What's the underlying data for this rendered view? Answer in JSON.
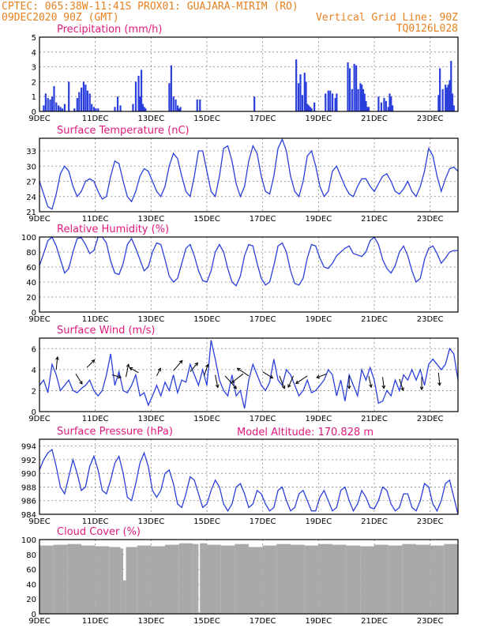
{
  "header": {
    "left1": "CPTEC:   065:38W-11:41S   PROX01: GUAJARA-MIRIM (RO)",
    "left2": "09DEC2020 90Z (GMT)",
    "right1": "Vertical Grid Line: 90Z",
    "right2": "TQ0126L028"
  },
  "colors": {
    "header": "#e8801f",
    "title": "#e0197d",
    "line": "#2b3fdc",
    "cloud": "#a9a9a9"
  },
  "chart_data": [
    {
      "type": "bar",
      "title": "Precipitation  (mm/h)",
      "ylim": [
        0,
        5
      ],
      "yticks": [
        "0",
        "1",
        "2",
        "3",
        "4",
        "5"
      ],
      "xticks": [
        "9DEC",
        "11DEC",
        "13DEC",
        "15DEC",
        "17DEC",
        "19DEC",
        "21DEC",
        "23DEC"
      ],
      "x_day": [
        0.15,
        0.22,
        0.3,
        0.38,
        0.45,
        0.52,
        0.6,
        0.68,
        0.75,
        0.82,
        0.9,
        1.05,
        1.25,
        1.35,
        1.42,
        1.5,
        1.58,
        1.65,
        1.72,
        1.8,
        1.87,
        1.95,
        2.02,
        2.1,
        2.7,
        2.8,
        2.9,
        3.35,
        3.45,
        3.55,
        3.6,
        3.65,
        3.7,
        3.75,
        3.8,
        4.65,
        4.72,
        4.8,
        4.88,
        4.95,
        5.0,
        5.05,
        5.65,
        5.75,
        7.7,
        9.2,
        9.28,
        9.35,
        9.42,
        9.5,
        9.55,
        9.6,
        9.65,
        9.7,
        9.75,
        9.85,
        10.25,
        10.35,
        10.42,
        10.5,
        10.6,
        10.65,
        11.05,
        11.12,
        11.2,
        11.28,
        11.35,
        11.42,
        11.5,
        11.55,
        11.6,
        11.65,
        11.7,
        11.75,
        11.8,
        12.15,
        12.25,
        12.35,
        12.42,
        12.5,
        12.55,
        12.6,
        12.65,
        14.3,
        14.35,
        14.45,
        14.55,
        14.6,
        14.65,
        14.7,
        14.75,
        14.8,
        14.85
      ],
      "values": [
        0.4,
        1.2,
        0.9,
        0.8,
        1.0,
        1.7,
        0.6,
        0.4,
        0.3,
        0.2,
        0.5,
        2.0,
        0.2,
        0.9,
        1.3,
        1.6,
        2.0,
        1.8,
        1.4,
        1.2,
        0.5,
        0.3,
        0.2,
        0.2,
        0.3,
        1.0,
        0.4,
        0.5,
        2.0,
        2.4,
        1.0,
        2.8,
        0.5,
        0.3,
        0.2,
        1.9,
        3.1,
        1.0,
        0.8,
        0.4,
        0.2,
        0.3,
        0.8,
        0.8,
        1.0,
        3.5,
        1.9,
        2.5,
        1.1,
        2.6,
        2.0,
        0.5,
        0.4,
        0.3,
        0.2,
        0.6,
        1.2,
        1.4,
        1.4,
        1.2,
        0.9,
        1.2,
        3.3,
        2.9,
        1.5,
        3.2,
        3.1,
        1.5,
        1.9,
        1.8,
        1.5,
        1.2,
        0.7,
        0.3,
        0.3,
        1.0,
        0.6,
        0.9,
        0.7,
        0.3,
        1.2,
        1.0,
        0.4,
        1.1,
        2.9,
        1.5,
        1.8,
        1.6,
        1.8,
        2.1,
        3.4,
        1.2,
        0.4
      ]
    },
    {
      "type": "line",
      "title": "Surface Temperature  (nC)",
      "ylim": [
        21,
        35.5
      ],
      "yticks": [
        "21",
        "24",
        "27",
        "30",
        "33"
      ],
      "xticks": [
        "9DEC",
        "11DEC",
        "13DEC",
        "15DEC",
        "17DEC",
        "19DEC",
        "21DEC",
        "23DEC"
      ],
      "x_day": [
        0,
        0.15,
        0.3,
        0.45,
        0.6,
        0.75,
        0.9,
        1.05,
        1.2,
        1.35,
        1.5,
        1.65,
        1.8,
        1.95,
        2.1,
        2.25,
        2.4,
        2.55,
        2.7,
        2.85,
        3.0,
        3.15,
        3.3,
        3.45,
        3.6,
        3.75,
        3.9,
        4.05,
        4.2,
        4.35,
        4.5,
        4.65,
        4.8,
        4.95,
        5.1,
        5.25,
        5.4,
        5.55,
        5.7,
        5.85,
        6.0,
        6.15,
        6.3,
        6.45,
        6.6,
        6.75,
        6.9,
        7.05,
        7.2,
        7.35,
        7.5,
        7.65,
        7.8,
        7.95,
        8.1,
        8.25,
        8.4,
        8.55,
        8.7,
        8.85,
        9.0,
        9.15,
        9.3,
        9.45,
        9.6,
        9.75,
        9.9,
        10.05,
        10.2,
        10.35,
        10.5,
        10.65,
        10.8,
        10.95,
        11.1,
        11.25,
        11.4,
        11.55,
        11.7,
        11.85,
        12.0,
        12.15,
        12.3,
        12.45,
        12.6,
        12.75,
        12.9,
        13.05,
        13.2,
        13.35,
        13.5,
        13.65,
        13.8,
        13.95,
        14.1,
        14.25,
        14.4,
        14.55,
        14.7,
        14.85,
        15.0
      ],
      "values": [
        27.0,
        24.5,
        22.0,
        21.5,
        24.5,
        28.5,
        30.0,
        29.0,
        26.0,
        24.0,
        25.0,
        27.0,
        27.5,
        27.0,
        25.0,
        23.5,
        24.0,
        28.0,
        31.0,
        30.5,
        27.0,
        24.0,
        23.0,
        25.0,
        28.0,
        29.5,
        29.0,
        27.0,
        25.0,
        24.0,
        26.0,
        30.0,
        32.5,
        31.5,
        28.0,
        25.0,
        24.0,
        28.0,
        33.0,
        33.0,
        29.0,
        25.0,
        24.0,
        28.0,
        33.5,
        34.0,
        31.0,
        26.5,
        24.0,
        26.0,
        31.0,
        34.0,
        32.5,
        28.0,
        25.0,
        24.5,
        28.0,
        33.5,
        35.3,
        33.0,
        28.0,
        25.0,
        24.0,
        27.0,
        32.0,
        33.0,
        30.0,
        26.0,
        24.0,
        25.0,
        29.0,
        30.0,
        28.0,
        26.0,
        24.5,
        24.0,
        26.0,
        27.5,
        27.5,
        26.0,
        25.0,
        26.5,
        28.0,
        28.5,
        27.0,
        25.0,
        24.5,
        25.5,
        27.0,
        25.0,
        24.0,
        26.0,
        29.0,
        33.5,
        32.0,
        28.0,
        25.0,
        27.5,
        29.5,
        29.8,
        29.0
      ]
    },
    {
      "type": "line",
      "title": "Relative Humidity  (%)",
      "ylim": [
        0,
        100
      ],
      "yticks": [
        "0",
        "20",
        "40",
        "60",
        "80",
        "100"
      ],
      "xticks": [
        "9DEC",
        "11DEC",
        "13DEC",
        "15DEC",
        "17DEC",
        "19DEC",
        "21DEC",
        "23DEC"
      ],
      "x_day": [
        0,
        0.15,
        0.3,
        0.45,
        0.6,
        0.75,
        0.9,
        1.05,
        1.2,
        1.35,
        1.5,
        1.65,
        1.8,
        1.95,
        2.1,
        2.25,
        2.4,
        2.55,
        2.7,
        2.85,
        3.0,
        3.15,
        3.3,
        3.45,
        3.6,
        3.75,
        3.9,
        4.05,
        4.2,
        4.35,
        4.5,
        4.65,
        4.8,
        4.95,
        5.1,
        5.25,
        5.4,
        5.55,
        5.7,
        5.85,
        6.0,
        6.15,
        6.3,
        6.45,
        6.6,
        6.75,
        6.9,
        7.05,
        7.2,
        7.35,
        7.5,
        7.65,
        7.8,
        7.95,
        8.1,
        8.25,
        8.4,
        8.55,
        8.7,
        8.85,
        9.0,
        9.15,
        9.3,
        9.45,
        9.6,
        9.75,
        9.9,
        10.05,
        10.2,
        10.35,
        10.5,
        10.65,
        10.8,
        10.95,
        11.1,
        11.25,
        11.4,
        11.55,
        11.7,
        11.85,
        12.0,
        12.15,
        12.3,
        12.45,
        12.6,
        12.75,
        12.9,
        13.05,
        13.2,
        13.35,
        13.5,
        13.65,
        13.8,
        13.95,
        14.1,
        14.25,
        14.4,
        14.55,
        14.7,
        14.85,
        15.0
      ],
      "values": [
        62,
        78,
        95,
        100,
        88,
        70,
        52,
        58,
        80,
        98,
        99,
        90,
        78,
        82,
        100,
        100,
        92,
        68,
        52,
        50,
        65,
        90,
        98,
        85,
        70,
        55,
        60,
        80,
        92,
        90,
        70,
        48,
        40,
        45,
        65,
        85,
        90,
        75,
        55,
        42,
        40,
        55,
        80,
        90,
        80,
        58,
        40,
        35,
        48,
        75,
        90,
        88,
        65,
        45,
        36,
        40,
        62,
        88,
        92,
        80,
        55,
        38,
        36,
        45,
        72,
        90,
        88,
        72,
        60,
        58,
        65,
        75,
        80,
        85,
        88,
        78,
        76,
        74,
        80,
        95,
        100,
        90,
        70,
        58,
        52,
        62,
        80,
        88,
        75,
        55,
        40,
        45,
        70,
        85,
        88,
        78,
        65,
        72,
        80,
        82,
        82
      ]
    },
    {
      "type": "line",
      "title": "Surface Wind  (m/s)",
      "ylim": [
        0,
        7
      ],
      "yticks": [
        "0",
        "2",
        "4",
        "6"
      ],
      "xticks": [
        "9DEC",
        "11DEC",
        "13DEC",
        "15DEC",
        "17DEC",
        "19DEC",
        "21DEC",
        "23DEC"
      ],
      "x_day": [
        0,
        0.15,
        0.3,
        0.45,
        0.6,
        0.75,
        0.9,
        1.05,
        1.2,
        1.35,
        1.5,
        1.65,
        1.8,
        1.95,
        2.1,
        2.25,
        2.4,
        2.55,
        2.7,
        2.85,
        3.0,
        3.15,
        3.3,
        3.45,
        3.6,
        3.75,
        3.9,
        4.05,
        4.2,
        4.35,
        4.5,
        4.65,
        4.8,
        4.95,
        5.1,
        5.25,
        5.4,
        5.55,
        5.7,
        5.85,
        6.0,
        6.15,
        6.3,
        6.45,
        6.6,
        6.75,
        6.9,
        7.05,
        7.2,
        7.35,
        7.5,
        7.65,
        7.8,
        7.95,
        8.1,
        8.25,
        8.4,
        8.55,
        8.7,
        8.85,
        9.0,
        9.15,
        9.3,
        9.45,
        9.6,
        9.75,
        9.9,
        10.05,
        10.2,
        10.35,
        10.5,
        10.65,
        10.8,
        10.95,
        11.1,
        11.25,
        11.4,
        11.55,
        11.7,
        11.85,
        12.0,
        12.15,
        12.3,
        12.45,
        12.6,
        12.75,
        12.9,
        13.05,
        13.2,
        13.35,
        13.5,
        13.65,
        13.8,
        13.95,
        14.1,
        14.25,
        14.4,
        14.55,
        14.7,
        14.85,
        15.0
      ],
      "values": [
        2.5,
        3.0,
        1.8,
        4.5,
        3.5,
        2.0,
        2.5,
        3.0,
        2.0,
        1.8,
        2.2,
        2.5,
        3.0,
        2.0,
        1.5,
        2.0,
        3.5,
        5.5,
        2.5,
        3.8,
        2.0,
        1.8,
        2.5,
        3.5,
        1.5,
        1.8,
        0.6,
        1.5,
        2.5,
        1.5,
        2.8,
        2.0,
        3.5,
        1.8,
        3.0,
        2.8,
        4.5,
        3.5,
        2.5,
        4.0,
        2.5,
        6.8,
        5.0,
        3.0,
        2.0,
        1.5,
        3.5,
        1.5,
        2.0,
        0.3,
        3.0,
        4.5,
        3.5,
        2.5,
        2.0,
        2.8,
        5.0,
        3.0,
        2.5,
        4.0,
        3.5,
        2.5,
        1.5,
        2.0,
        3.0,
        1.8,
        2.0,
        2.5,
        3.0,
        4.0,
        3.5,
        1.5,
        3.0,
        1.0,
        3.5,
        2.5,
        1.5,
        4.0,
        3.0,
        4.2,
        3.0,
        0.8,
        1.0,
        2.0,
        1.5,
        3.0,
        2.0,
        3.5,
        3.0,
        4.0,
        3.0,
        4.0,
        2.5,
        4.5,
        5.0,
        4.5,
        4.0,
        4.5,
        6.0,
        5.5,
        3.0
      ]
    },
    {
      "type": "line",
      "title": "Surface Pressure  (hPa)",
      "annotation": "Model Altitude: 170.828  m",
      "ylim": [
        984,
        995
      ],
      "yticks": [
        "984",
        "986",
        "988",
        "990",
        "992",
        "994"
      ],
      "xticks": [
        "9DEC",
        "11DEC",
        "13DEC",
        "15DEC",
        "17DEC",
        "19DEC",
        "21DEC",
        "23DEC"
      ],
      "x_day": [
        0,
        0.15,
        0.3,
        0.45,
        0.6,
        0.75,
        0.9,
        1.05,
        1.2,
        1.35,
        1.5,
        1.65,
        1.8,
        1.95,
        2.1,
        2.25,
        2.4,
        2.55,
        2.7,
        2.85,
        3.0,
        3.15,
        3.3,
        3.45,
        3.6,
        3.75,
        3.9,
        4.05,
        4.2,
        4.35,
        4.5,
        4.65,
        4.8,
        4.95,
        5.1,
        5.25,
        5.4,
        5.55,
        5.7,
        5.85,
        6.0,
        6.15,
        6.3,
        6.45,
        6.6,
        6.75,
        6.9,
        7.05,
        7.2,
        7.35,
        7.5,
        7.65,
        7.8,
        7.95,
        8.1,
        8.25,
        8.4,
        8.55,
        8.7,
        8.85,
        9.0,
        9.15,
        9.3,
        9.45,
        9.6,
        9.75,
        9.9,
        10.05,
        10.2,
        10.35,
        10.5,
        10.65,
        10.8,
        10.95,
        11.1,
        11.25,
        11.4,
        11.55,
        11.7,
        11.85,
        12.0,
        12.15,
        12.3,
        12.45,
        12.6,
        12.75,
        12.9,
        13.05,
        13.2,
        13.35,
        13.5,
        13.65,
        13.8,
        13.95,
        14.1,
        14.25,
        14.4,
        14.55,
        14.7,
        14.85,
        15.0
      ],
      "values": [
        990.5,
        992.0,
        993.0,
        993.5,
        991.0,
        988.0,
        987.0,
        989.5,
        992.0,
        990.0,
        987.5,
        988.0,
        991.0,
        992.5,
        990.5,
        987.5,
        987.0,
        989.0,
        991.5,
        992.5,
        990.0,
        986.5,
        986.0,
        988.5,
        991.5,
        993.0,
        991.0,
        987.5,
        986.5,
        987.5,
        990.0,
        990.5,
        988.5,
        985.5,
        985.0,
        987.0,
        989.5,
        989.0,
        987.0,
        985.0,
        985.5,
        987.5,
        989.0,
        988.0,
        985.5,
        984.5,
        985.5,
        988.0,
        988.5,
        987.0,
        985.0,
        985.5,
        987.5,
        987.0,
        985.5,
        984.5,
        985.0,
        987.5,
        988.0,
        986.0,
        984.5,
        985.0,
        987.0,
        987.5,
        986.0,
        984.5,
        984.5,
        986.5,
        987.5,
        986.0,
        984.5,
        985.0,
        987.5,
        988.0,
        986.0,
        984.5,
        985.5,
        987.5,
        986.5,
        985.0,
        984.8,
        986.0,
        988.0,
        987.5,
        985.5,
        984.5,
        985.0,
        987.0,
        987.0,
        985.0,
        984.5,
        986.0,
        988.5,
        988.0,
        985.5,
        984.5,
        986.0,
        988.5,
        989.0,
        986.5,
        984.0
      ]
    },
    {
      "type": "area",
      "title": "Cloud Cover  (%)",
      "ylim": [
        0,
        100
      ],
      "yticks": [
        "0",
        "20",
        "40",
        "60",
        "80",
        "100"
      ],
      "xticks": [
        "9DEC",
        "11DEC",
        "13DEC",
        "15DEC",
        "17DEC",
        "19DEC",
        "21DEC",
        "23DEC"
      ],
      "x_day": [
        0,
        0.5,
        1.0,
        1.5,
        2.0,
        2.5,
        2.9,
        3.0,
        3.1,
        3.5,
        4.0,
        4.5,
        5.0,
        5.5,
        5.65,
        5.7,
        5.75,
        6.0,
        6.5,
        7.0,
        7.5,
        8.0,
        8.5,
        9.0,
        9.5,
        10.0,
        10.5,
        11.0,
        11.5,
        12.0,
        12.5,
        13.0,
        13.5,
        14.0,
        14.5,
        15.0
      ],
      "values": [
        92,
        93,
        94,
        92,
        91,
        90,
        88,
        45,
        90,
        92,
        91,
        93,
        95,
        94,
        94,
        2,
        95,
        93,
        92,
        94,
        90,
        92,
        94,
        93,
        92,
        94,
        93,
        92,
        91,
        93,
        92,
        94,
        93,
        92,
        94,
        95
      ]
    }
  ]
}
